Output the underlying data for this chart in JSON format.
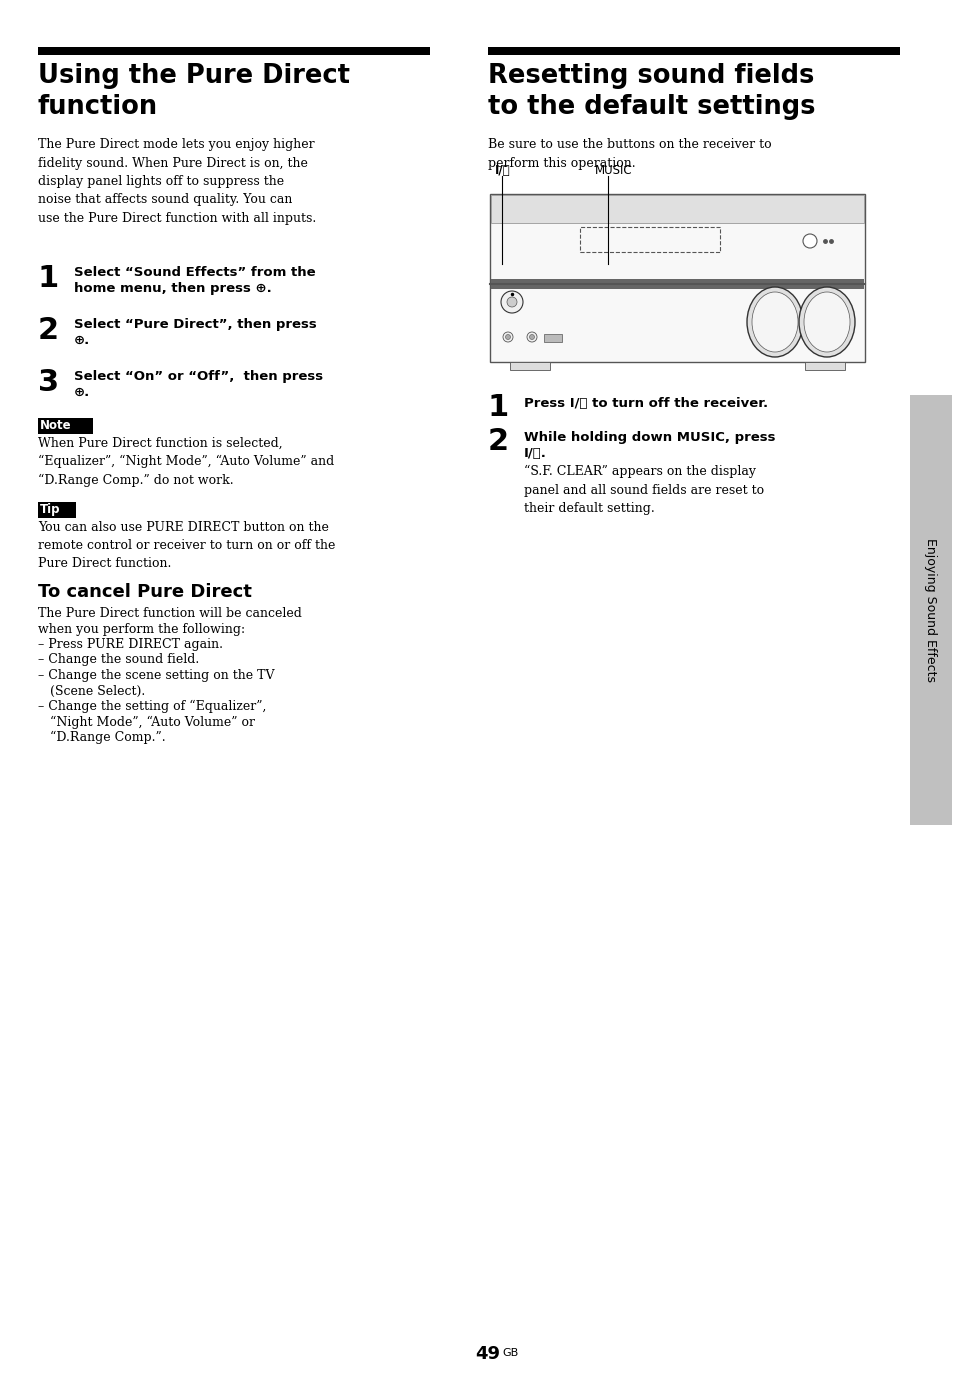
{
  "page_bg": "#ffffff",
  "left_title_line1": "Using the Pure Direct",
  "left_title_line2": "function",
  "right_title_line1": "Resetting sound fields",
  "right_title_line2": "to the default settings",
  "left_body": "The Pure Direct mode lets you enjoy higher\nfidelity sound. When Pure Direct is on, the\ndisplay panel lights off to suppress the\nnoise that affects sound quality. You can\nuse the Pure Direct function with all inputs.",
  "step1_num": "1",
  "step1_text_line1": "Select “Sound Effects” from the",
  "step1_text_line2": "home menu, then press ⊕.",
  "step2_num": "2",
  "step2_text_line1": "Select “Pure Direct”, then press",
  "step2_text_line2": "⊕.",
  "step3_num": "3",
  "step3_text_line1": "Select “On” or “Off”,  then press",
  "step3_text_line2": "⊕.",
  "note_label": "Note",
  "note_text": "When Pure Direct function is selected,\n“Equalizer”, “Night Mode”, “Auto Volume” and\n“D.Range Comp.” do not work.",
  "tip_label": "Tip",
  "tip_text": "You can also use PURE DIRECT button on the\nremote control or receiver to turn on or off the\nPure Direct function.",
  "cancel_title": "To cancel Pure Direct",
  "cancel_body_line1": "The Pure Direct function will be canceled",
  "cancel_body_line2": "when you perform the following:",
  "cancel_body_line3": "– Press PURE DIRECT again.",
  "cancel_body_line4": "– Change the sound field.",
  "cancel_body_line5": "– Change the scene setting on the TV",
  "cancel_body_line6": "   (Scene Select).",
  "cancel_body_line7": "– Change the setting of “Equalizer”,",
  "cancel_body_line8": "   “Night Mode”, “Auto Volume” or",
  "cancel_body_line9": "   “D.Range Comp.”.",
  "right_intro": "Be sure to use the buttons on the receiver to\nperform this operation.",
  "rstep1_num": "1",
  "rstep1_text": "Press I/⏻ to turn off the receiver.",
  "rstep2_num": "2",
  "rstep2_bold_line1": "While holding down MUSIC, press",
  "rstep2_bold_line2": "I/⏻.",
  "rstep2_body": "“S.F. CLEAR” appears on the display\npanel and all sound fields are reset to\ntheir default setting.",
  "page_num": "49",
  "page_suffix": "GB",
  "sidebar_text": "Enjoying Sound Effects",
  "sidebar_bg": "#c8c8c8",
  "img_label_io": "I/⏻",
  "img_label_music": "MUSIC"
}
